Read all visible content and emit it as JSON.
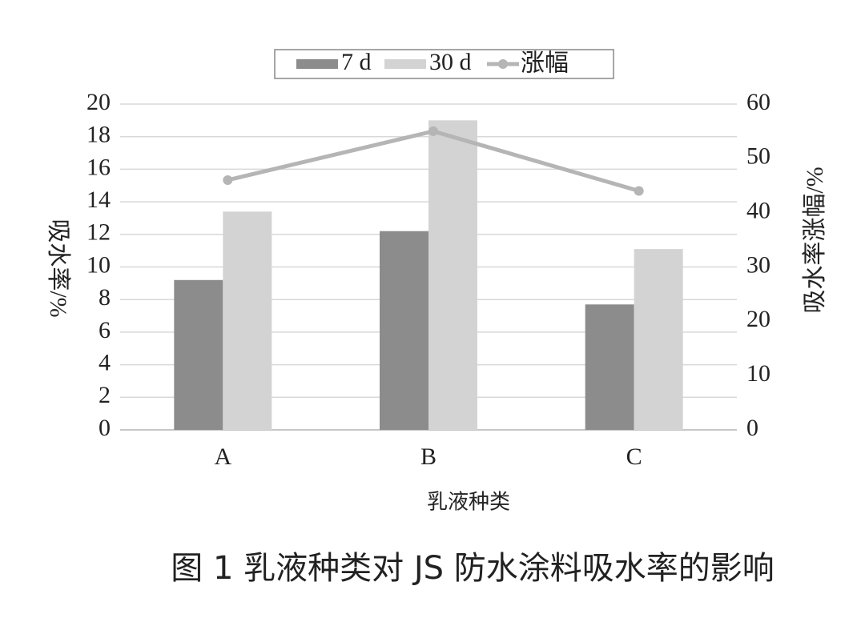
{
  "chart_data": {
    "type": "bar",
    "title": "图 1 乳液种类对 JS 防水涂料吸水率的影响",
    "x_label": "乳液种类",
    "y_label": "吸水率/%",
    "y2_label": "吸水率涨幅/%",
    "categories": [
      "A",
      "B",
      "C"
    ],
    "series": [
      {
        "name": "7 d",
        "color": "#8c8c8c",
        "values": [
          9.2,
          12.2,
          7.7
        ]
      },
      {
        "name": "30 d",
        "color": "#d3d3d3",
        "values": [
          13.4,
          19.0,
          11.1
        ]
      },
      {
        "name": "涨幅",
        "color": "#b5b5b5",
        "values": [
          46,
          55,
          44
        ],
        "axis": "y2",
        "kind": "line"
      }
    ],
    "ylim": [
      0,
      20
    ],
    "yticks": [
      0,
      2,
      4,
      6,
      8,
      10,
      12,
      14,
      16,
      18,
      20
    ],
    "y2lim": [
      0,
      60
    ],
    "y2ticks": [
      0,
      10,
      20,
      30,
      40,
      50,
      60
    ],
    "grid": true,
    "legend": "top"
  }
}
